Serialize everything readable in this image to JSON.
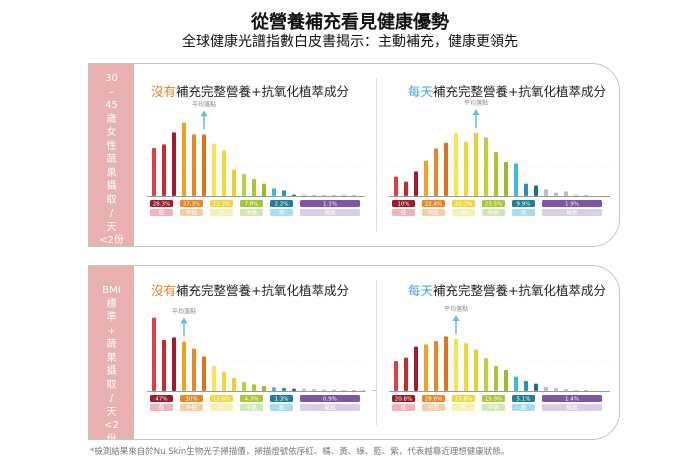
{
  "header": {
    "title": "從營養補充看見健康優勢",
    "subtitle": "全球健康光譜指數白皮書揭示：主動補充，健康更領先"
  },
  "cards": [
    {
      "side_label": [
        "30",
        "–",
        "45",
        "歲",
        "女",
        "性",
        "蔬",
        "果",
        "攝",
        "取",
        "/",
        "天",
        "<2份"
      ]
    },
    {
      "side_label": [
        "BMI",
        "標",
        "準",
        "+",
        "蔬",
        "果",
        "攝",
        "取",
        "/",
        "天",
        "<2",
        "份"
      ]
    }
  ],
  "panel_titles": {
    "no": {
      "highlight": "沒有",
      "rest": "補充完整營養+抗氧化植萃成分",
      "color": "#e8821e"
    },
    "daily": {
      "highlight": "每天",
      "rest": "補充完整營養+抗氧化植萃成分",
      "color": "#4aa3d8"
    }
  },
  "average_label": "平均落點",
  "categories": [
    "低",
    "中低",
    "中",
    "中高",
    "高",
    "極高"
  ],
  "colors": {
    "groups": [
      [
        "#e53d3d",
        "#c9282e",
        "#a01c2c"
      ],
      [
        "#f5a11f",
        "#ec8620",
        "#e2711b"
      ],
      [
        "#f6e24e",
        "#f0d736",
        "#ebd02a"
      ],
      [
        "#b6d33a",
        "#a6c72f",
        "#98bd2a"
      ],
      [
        "#35b9e8",
        "#1f94bd",
        "#17718f"
      ],
      [
        "#c3b7da",
        "#c3b7da",
        "#c3b7da"
      ]
    ],
    "pills": [
      "#a01c2c",
      "#ec8620",
      "#f0d736",
      "#a6c72f",
      "#1f7f9c",
      "#7e55a8"
    ],
    "pills_light": [
      "#efb3b8",
      "#f7caa8",
      "#f8f0b4",
      "#cfe8b4",
      "#a9dcef",
      "#d8cfe6"
    ]
  },
  "chart_data": [
    {
      "type": "bar",
      "panel": "card1-left",
      "title": "沒有補充完整營養+抗氧化植萃成分",
      "average_index": 5,
      "values": [
        144,
        155,
        191,
        221,
        185,
        185,
        157,
        137,
        79,
        66,
        51,
        37,
        23,
        17,
        4,
        3,
        2,
        1,
        1,
        1,
        1
      ],
      "group_percents": [
        "28.3%",
        "37.3%",
        "22.3%",
        "7.8%",
        "2.2%",
        "1.1%"
      ]
    },
    {
      "type": "bar",
      "panel": "card1-right",
      "title": "每天補充完整營養+抗氧化植萃成分",
      "average_index": 8,
      "values": [
        58,
        43,
        74,
        106,
        143,
        160,
        189,
        163,
        189,
        176,
        132,
        102,
        98,
        37,
        32,
        20,
        10,
        14,
        2,
        2
      ],
      "group_percents": [
        "10%",
        "22.4%",
        "32.3%",
        "23.5%",
        "9.9%",
        "1.9%"
      ]
    },
    {
      "type": "bar",
      "panel": "card2-left",
      "title": "沒有補充完整營養+抗氧化植萃成分",
      "average_index": 3,
      "values": [
        220,
        153,
        161,
        149,
        127,
        104,
        75,
        57,
        39,
        27,
        20,
        15,
        11,
        9,
        7,
        7,
        6,
        4,
        4,
        3,
        2,
        2,
        2
      ],
      "group_percents": [
        "47%",
        "30%",
        "13.8%",
        "4.3%",
        "1.3%",
        "0.9%"
      ]
    },
    {
      "type": "bar",
      "panel": "card2-right",
      "title": "每天補充完整營養+抗氧化植萃成分",
      "average_index": 6,
      "values": [
        90,
        100,
        133,
        140,
        150,
        164,
        156,
        144,
        125,
        99,
        75,
        63,
        43,
        30,
        22,
        12,
        9,
        6,
        3,
        3
      ],
      "group_percents": [
        "20.8%",
        "28.6%",
        "27.8%",
        "15.9%",
        "5.1%",
        "1.4%"
      ]
    }
  ],
  "footnote": "*檢測結果來自於Nu Skin生物光子掃描儀，掃描燈號依序紅、橘、黃、綠、藍、紫，代表越靠近理想健康狀態。"
}
